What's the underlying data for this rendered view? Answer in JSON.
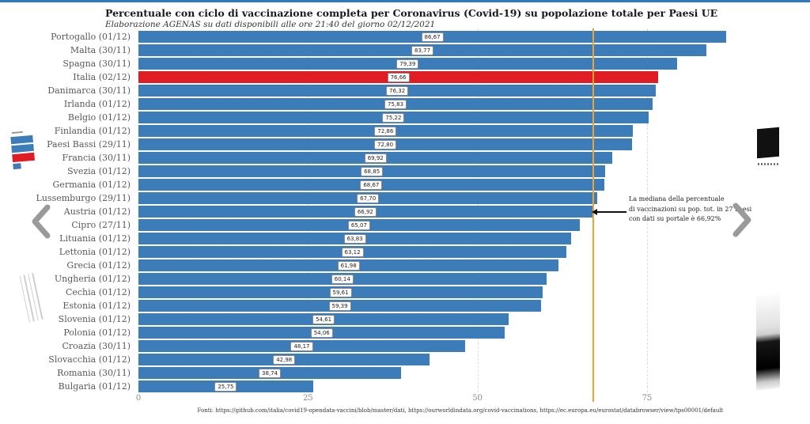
{
  "accent": {
    "top_bar_color": "#2e79c0"
  },
  "header": {
    "title": "Percentuale con ciclo di vaccinazione completa per Coronavirus (Covid-19) su popolazione totale per Paesi UE",
    "subtitle": "Elaborazione AGENAS su dati disponibili alle ore 21:40  del giorno  02/12/2021"
  },
  "chart_data": {
    "type": "bar",
    "orientation": "horizontal",
    "title": "Percentuale con ciclo di vaccinazione completa per Coronavirus (Covid-19) su popolazione totale per Paesi UE",
    "xlabel": "",
    "ylabel": "",
    "xlim": [
      0,
      93.4
    ],
    "x_ticks": [
      "0",
      "25",
      "50",
      "75"
    ],
    "x_tick_values": [
      0,
      25,
      50,
      75
    ],
    "grid": "vertical-dashed",
    "categories": [
      "Portogallo (01/12)",
      "Malta (30/11)",
      "Spagna (30/11)",
      "Italia (02/12)",
      "Danimarca (30/11)",
      "Irlanda (01/12)",
      "Belgio (01/12)",
      "Finlandia (01/12)",
      "Paesi Bassi (29/11)",
      "Francia (30/11)",
      "Svezia (01/12)",
      "Germania (01/12)",
      "Lussemburgo (29/11)",
      "Austria (01/12)",
      "Cipro (27/11)",
      "Lituania (01/12)",
      "Lettonia (01/12)",
      "Grecia (01/12)",
      "Ungheria (01/12)",
      "Cechia (01/12)",
      "Estonia (01/12)",
      "Slovenia (01/12)",
      "Polonia (01/12)",
      "Croazia (30/11)",
      "Slovacchia (01/12)",
      "Romania (30/11)",
      "Bulgaria (01/12)"
    ],
    "values": [
      86.67,
      83.77,
      79.39,
      76.66,
      76.32,
      75.83,
      75.22,
      72.86,
      72.8,
      69.92,
      68.85,
      68.67,
      67.7,
      66.92,
      65.07,
      63.83,
      63.12,
      61.98,
      60.14,
      59.61,
      59.39,
      54.61,
      54.06,
      48.17,
      42.98,
      38.74,
      25.75
    ],
    "value_labels": [
      "86,67",
      "83,77",
      "79,39",
      "76,66",
      "76,32",
      "75,83",
      "75,22",
      "72,86",
      "72,80",
      "69,92",
      "68,85",
      "68,67",
      "67,70",
      "66,92",
      "65,07",
      "63,83",
      "63,12",
      "61,98",
      "60,14",
      "59,61",
      "59,39",
      "54,61",
      "54,06",
      "48,17",
      "42,98",
      "38,74",
      "25,75"
    ],
    "highlight_category": "Italia (02/12)",
    "highlight_index": 3,
    "bar_color": "#3c7cb8",
    "highlight_color": "#e01c24",
    "median_line": {
      "value": 66.92,
      "color": "#f0a330",
      "annotation": [
        "La mediana della percentuale",
        "di vaccinazioni su pop. tot. in 27 Paesi",
        "con dati su portale è 66,92%"
      ]
    }
  },
  "footer": {
    "sources": "Fonti: https://github.com/italia/covid19-opendata-vaccini/blob/master/dati, https://ourworldindata.org/covid-vaccinations, https://ec.europa.eu/eurostat/databrowser/view/tps00001/default"
  },
  "carousel": {
    "prev_label": "previous slide",
    "next_label": "next slide"
  }
}
